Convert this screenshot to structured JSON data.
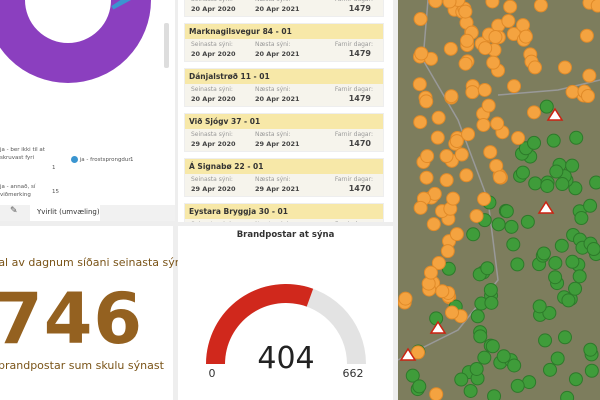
{
  "donut": {
    "colors": {
      "main": "#8b3fbf",
      "accent": "#3a95d0"
    }
  },
  "legend": [
    {
      "label": "ja - ber ikki til at skruvast fyri",
      "value": "1"
    },
    {
      "label": "ja - annað, sí viðmerking",
      "value": "15"
    },
    {
      "label": "ja - frostsprongdur",
      "value": "1",
      "color": "#3a95d0"
    }
  ],
  "tabs": {
    "active": "Yvirlit (umvæling)"
  },
  "kpi": {
    "top": "tal av dagnum síðani seinasta sýni",
    "value": "746",
    "bottom": "brandpostar sum skulu sýnast",
    "color": "#946120"
  },
  "list": {
    "labels": {
      "last": "Seinasta sýni:",
      "next": "Næsta sýni:",
      "days": "Farnir dagar:"
    },
    "items": [
      {
        "name": "",
        "last": "20 Apr 2020",
        "next": "20 Apr 2021",
        "days": "1479"
      },
      {
        "name": "Marknagilsvegur 84 - 01",
        "last": "20 Apr 2020",
        "next": "20 Apr 2021",
        "days": "1479"
      },
      {
        "name": "Dánjalstrøð 11 - 01",
        "last": "20 Apr 2020",
        "next": "20 Apr 2021",
        "days": "1479"
      },
      {
        "name": "Við Sjógv 37 - 01",
        "last": "29 Apr 2020",
        "next": "29 Apr 2021",
        "days": "1470"
      },
      {
        "name": "Á Signabø 22 - 01",
        "last": "29 Apr 2020",
        "next": "29 Apr 2021",
        "days": "1470"
      },
      {
        "name": "Eystara Bryggja 30 - 01",
        "last": "",
        "next": "",
        "days": ""
      }
    ]
  },
  "gauge": {
    "title": "Brandpostar at sýna",
    "value": 404,
    "min": 0,
    "max": 662,
    "value_label": "404",
    "min_label": "0",
    "max_label": "662",
    "fill": "#d0281c",
    "track": "#e3e3e3"
  },
  "map": {
    "colors": {
      "pending": "#f4a340",
      "ok": "#3f9c3a"
    }
  }
}
